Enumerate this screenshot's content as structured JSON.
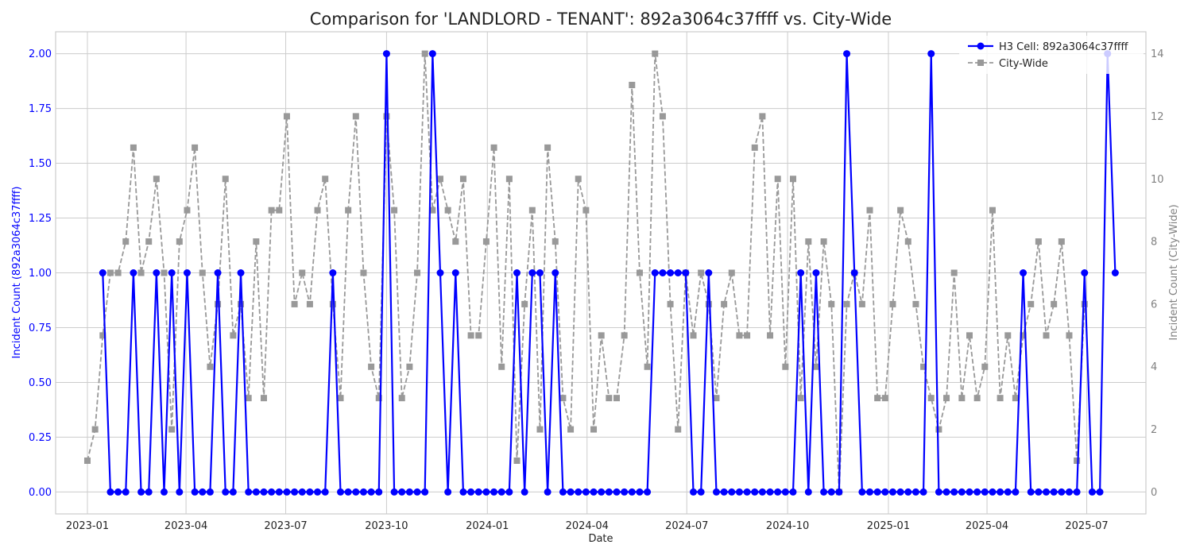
{
  "chart_data": {
    "type": "line",
    "title": "Comparison for 'LANDLORD - TENANT': 892a3064c37ffff vs. City-Wide",
    "xlabel": "Date",
    "ylabel_left": "Incident Count (892a3064c37ffff)",
    "ylabel_right": "Incident Count (City-Wide)",
    "ylim_left": [
      -0.1,
      2.1
    ],
    "ylim_right": [
      -0.7,
      14.7
    ],
    "xlim": [
      "2022-12-03",
      "2025-08-24"
    ],
    "grid": true,
    "legend_position": "upper right",
    "x_ticks": [
      "2023-01",
      "2023-04",
      "2023-07",
      "2023-10",
      "2024-01",
      "2024-04",
      "2024-07",
      "2024-10",
      "2025-01",
      "2025-04",
      "2025-07"
    ],
    "x_tick_dates": [
      "2023-01-01",
      "2023-04-01",
      "2023-07-01",
      "2023-10-01",
      "2024-01-01",
      "2024-04-01",
      "2024-07-01",
      "2024-10-01",
      "2025-01-01",
      "2025-04-01",
      "2025-07-01"
    ],
    "y_ticks_left": [
      "0.00",
      "0.25",
      "0.50",
      "0.75",
      "1.00",
      "1.25",
      "1.50",
      "1.75",
      "2.00"
    ],
    "y_tick_values_left": [
      0,
      0.25,
      0.5,
      0.75,
      1.0,
      1.25,
      1.5,
      1.75,
      2.0
    ],
    "y_ticks_right": [
      "0",
      "2",
      "4",
      "6",
      "8",
      "10",
      "12",
      "14"
    ],
    "y_tick_values_right": [
      0,
      2,
      4,
      6,
      8,
      10,
      12,
      14
    ],
    "start_date": "2023-01-01",
    "interval_days": 7,
    "series": [
      {
        "name": "H3 Cell: 892a3064c37ffff",
        "color": "#0000ff",
        "axis": "left",
        "marker": "circle",
        "line_style": "solid",
        "offset": 2,
        "values": [
          1,
          0,
          0,
          0,
          1,
          0,
          0,
          1,
          0,
          1,
          0,
          1,
          0,
          0,
          0,
          1,
          0,
          0,
          1,
          0,
          0,
          0,
          0,
          0,
          0,
          0,
          0,
          0,
          0,
          0,
          1,
          0,
          0,
          0,
          0,
          0,
          0,
          2,
          0,
          0,
          0,
          0,
          0,
          2,
          1,
          0,
          1,
          0,
          0,
          0,
          0,
          0,
          0,
          0,
          1,
          0,
          1,
          1,
          0,
          1,
          0,
          0,
          0,
          0,
          0,
          0,
          0,
          0,
          0,
          0,
          0,
          0,
          1,
          1,
          1,
          1,
          1,
          0,
          0,
          1,
          0,
          0,
          0,
          0,
          0,
          0,
          0,
          0,
          0,
          0,
          0,
          1,
          0,
          1,
          0,
          0,
          0,
          2,
          1,
          0,
          0,
          0,
          0,
          0,
          0,
          0,
          0,
          0,
          2,
          0,
          0,
          0,
          0,
          0,
          0,
          0,
          0,
          0,
          0,
          0,
          1,
          0,
          0,
          0,
          0,
          0,
          0,
          0,
          1,
          0,
          0,
          2,
          1
        ]
      },
      {
        "name": "City-Wide",
        "color": "#999999",
        "axis": "right",
        "marker": "square",
        "line_style": "dashed",
        "offset": 0,
        "values": [
          1,
          2,
          5,
          7,
          7,
          8,
          11,
          7,
          8,
          10,
          7,
          2,
          8,
          9,
          11,
          7,
          4,
          6,
          10,
          5,
          6,
          3,
          8,
          3,
          9,
          9,
          12,
          6,
          7,
          6,
          9,
          10,
          6,
          3,
          9,
          12,
          7,
          4,
          3,
          12,
          9,
          3,
          4,
          7,
          14,
          9,
          10,
          9,
          8,
          10,
          5,
          5,
          8,
          11,
          4,
          10,
          1,
          6,
          9,
          2,
          11,
          8,
          3,
          2,
          10,
          9,
          2,
          5,
          3,
          3,
          5,
          13,
          7,
          4,
          14,
          12,
          6,
          2,
          7,
          5,
          7,
          6,
          3,
          6,
          7,
          5,
          5,
          11,
          12,
          5,
          10,
          4,
          10,
          3,
          8,
          4,
          8,
          6,
          0,
          6,
          7,
          6,
          9,
          3,
          3,
          6,
          9,
          8,
          6,
          4,
          3,
          2,
          3,
          7,
          3,
          5,
          3,
          4,
          9,
          3,
          5,
          3,
          5,
          6,
          8,
          5,
          6,
          8,
          5,
          1,
          6
        ]
      }
    ]
  }
}
